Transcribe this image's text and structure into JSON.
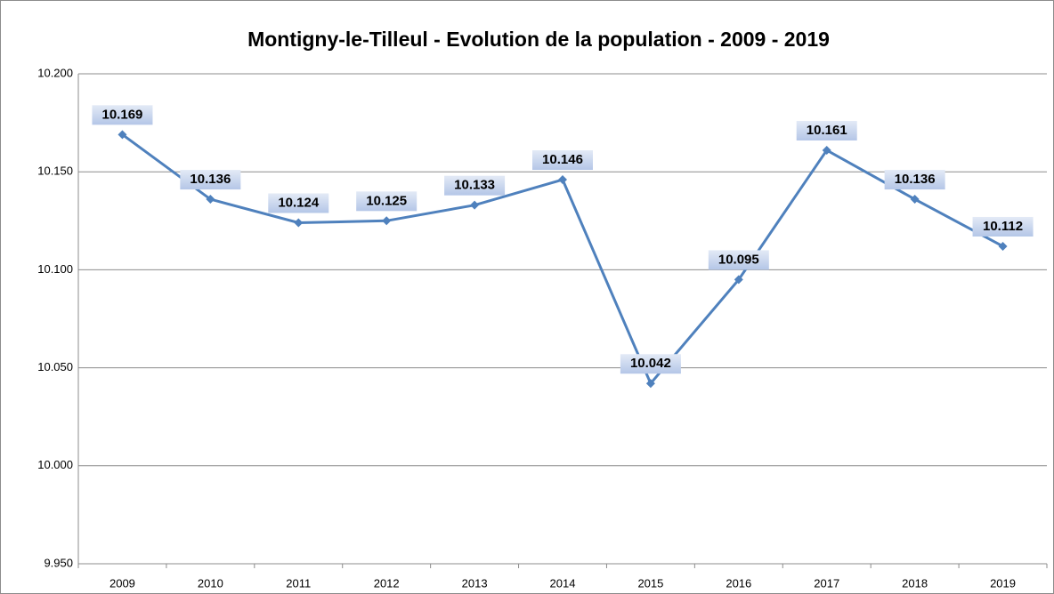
{
  "chart_data": {
    "type": "line",
    "title": "Montigny-le-Tilleul - Evolution de la population - 2009 - 2019",
    "categories": [
      "2009",
      "2010",
      "2011",
      "2012",
      "2013",
      "2014",
      "2015",
      "2016",
      "2017",
      "2018",
      "2019"
    ],
    "series": [
      {
        "color": "#4f81bd",
        "values": [
          10169,
          10136,
          10124,
          10125,
          10133,
          10146,
          10042,
          10095,
          10161,
          10136,
          10112
        ],
        "value_labels": [
          "10.169",
          "10.136",
          "10.124",
          "10.125",
          "10.133",
          "10.146",
          "10.042",
          "10.095",
          "10.161",
          "10.136",
          "10.112"
        ]
      }
    ],
    "ylim": [
      9950,
      10200
    ],
    "yticks": [
      {
        "value": 9950,
        "label": "9.950"
      },
      {
        "value": 10000,
        "label": "10.000"
      },
      {
        "value": 10050,
        "label": "10.050"
      },
      {
        "value": 10100,
        "label": "10.100"
      },
      {
        "value": 10150,
        "label": "10.150"
      },
      {
        "value": 10200,
        "label": "10.200"
      }
    ],
    "grid": true
  }
}
